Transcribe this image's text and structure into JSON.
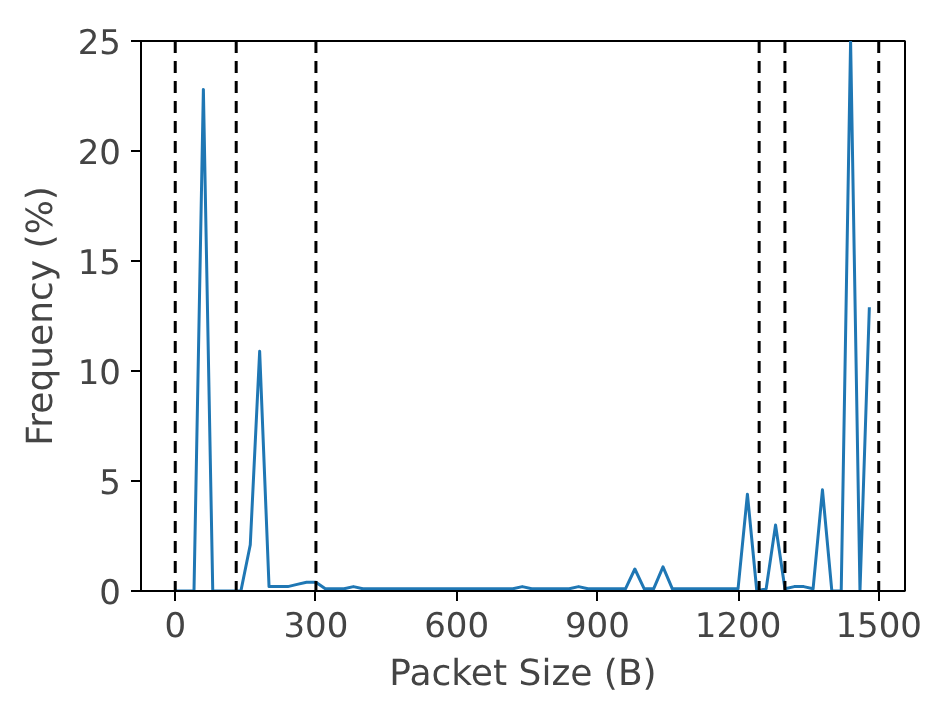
{
  "chart_data": {
    "type": "line",
    "xlabel": "Packet Size (B)",
    "ylabel": "Frequency (%)",
    "x": [
      0,
      20,
      40,
      60,
      80,
      100,
      120,
      140,
      160,
      180,
      200,
      220,
      240,
      260,
      280,
      300,
      320,
      340,
      360,
      380,
      400,
      420,
      440,
      460,
      480,
      500,
      520,
      540,
      560,
      580,
      600,
      620,
      640,
      660,
      680,
      700,
      720,
      740,
      760,
      780,
      800,
      820,
      840,
      860,
      880,
      900,
      920,
      940,
      960,
      980,
      1000,
      1020,
      1040,
      1060,
      1080,
      1100,
      1120,
      1140,
      1160,
      1180,
      1200,
      1220,
      1240,
      1260,
      1280,
      1300,
      1320,
      1340,
      1360,
      1380,
      1400,
      1420,
      1440,
      1460,
      1480
    ],
    "series": [
      {
        "color": "#1f77b4",
        "values": [
          0,
          0,
          0,
          22.8,
          0,
          0,
          0,
          0,
          2.1,
          10.9,
          0.2,
          0.2,
          0.2,
          0.3,
          0.4,
          0.4,
          0.1,
          0.1,
          0.1,
          0.2,
          0.1,
          0.1,
          0.1,
          0.1,
          0.1,
          0.1,
          0.1,
          0.1,
          0.1,
          0.1,
          0.1,
          0.1,
          0.1,
          0.1,
          0.1,
          0.1,
          0.1,
          0.2,
          0.1,
          0.1,
          0.1,
          0.1,
          0.1,
          0.2,
          0.1,
          0.1,
          0.1,
          0.1,
          0.1,
          1.0,
          0.1,
          0.1,
          1.1,
          0.1,
          0.1,
          0.1,
          0.1,
          0.1,
          0.1,
          0.1,
          0.1,
          4.4,
          0,
          0.1,
          3.0,
          0.1,
          0.2,
          0.2,
          0.1,
          4.6,
          0,
          0,
          25,
          0,
          12.9
        ]
      }
    ],
    "xlim": [
      -73,
      1556
    ],
    "ylim": [
      0,
      25
    ],
    "xticks": [
      0,
      300,
      600,
      900,
      1200,
      1500
    ],
    "yticks": [
      0,
      5,
      10,
      15,
      20,
      25
    ],
    "ref_lines": [
      {
        "axis": "x",
        "value": 0,
        "color": "#000000",
        "line_style": "dashed"
      },
      {
        "axis": "x",
        "value": 130,
        "color": "#000000",
        "line_style": "dashed"
      },
      {
        "axis": "x",
        "value": 300,
        "color": "#000000",
        "line_style": "dashed"
      },
      {
        "axis": "x",
        "value": 1245,
        "color": "#000000",
        "line_style": "dashed"
      },
      {
        "axis": "x",
        "value": 1300,
        "color": "#000000",
        "line_style": "dashed"
      },
      {
        "axis": "x",
        "value": 1500,
        "color": "#000000",
        "line_style": "dashed"
      }
    ],
    "grid": false,
    "marker": "none",
    "line_style": "solid"
  }
}
